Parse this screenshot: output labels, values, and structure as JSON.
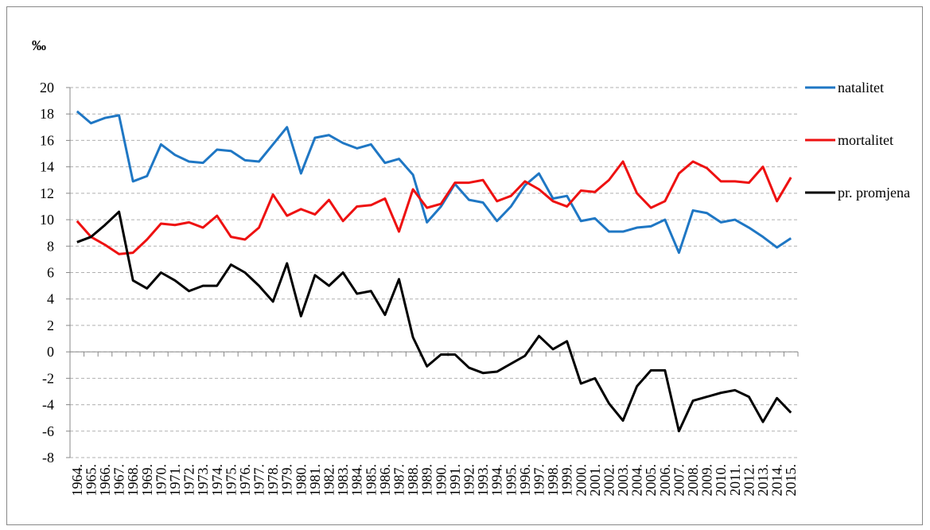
{
  "chart_data": {
    "type": "line",
    "y_label": "‰",
    "categories": [
      "1964.",
      "1965.",
      "1966.",
      "1967.",
      "1968.",
      "1969.",
      "1970.",
      "1971.",
      "1972.",
      "1973.",
      "1974.",
      "1975.",
      "1976.",
      "1977.",
      "1978.",
      "1979.",
      "1980.",
      "1981.",
      "1982.",
      "1983.",
      "1984.",
      "1985.",
      "1986.",
      "1987.",
      "1988.",
      "1989.",
      "1990.",
      "1991.",
      "1992.",
      "1993.",
      "1994.",
      "1995.",
      "1996.",
      "1997.",
      "1998.",
      "1999.",
      "2000.",
      "2001.",
      "2002.",
      "2003.",
      "2004.",
      "2005.",
      "2006.",
      "2007.",
      "2008.",
      "2009.",
      "2010.",
      "2011.",
      "2012.",
      "2013.",
      "2014.",
      "2015."
    ],
    "series": [
      {
        "name": "natalitet",
        "color": "#1f77c4",
        "values": [
          18.2,
          17.3,
          17.7,
          17.9,
          12.9,
          13.3,
          15.7,
          14.9,
          14.4,
          14.3,
          15.3,
          15.2,
          14.5,
          14.4,
          15.7,
          17.0,
          13.5,
          16.2,
          16.4,
          15.8,
          15.4,
          15.7,
          14.3,
          14.6,
          13.4,
          9.8,
          11.0,
          12.7,
          11.5,
          11.3,
          9.9,
          11.0,
          12.6,
          13.5,
          11.6,
          11.8,
          9.9,
          10.1,
          9.1,
          9.1,
          9.4,
          9.5,
          10.0,
          7.5,
          10.7,
          10.5,
          9.8,
          10.0,
          9.4,
          8.7,
          7.9,
          8.6
        ]
      },
      {
        "name": "mortalitet",
        "color": "#ee1111",
        "values": [
          9.9,
          8.7,
          8.1,
          7.4,
          7.5,
          8.5,
          9.7,
          9.6,
          9.8,
          9.4,
          10.3,
          8.7,
          8.5,
          9.4,
          11.9,
          10.3,
          10.8,
          10.4,
          11.5,
          9.9,
          11.0,
          11.1,
          11.6,
          9.1,
          12.3,
          10.9,
          11.2,
          12.8,
          12.8,
          13.0,
          11.4,
          11.8,
          12.9,
          12.3,
          11.4,
          11.0,
          12.2,
          12.1,
          13.0,
          14.4,
          12.0,
          10.9,
          11.4,
          13.5,
          14.4,
          13.9,
          12.9,
          12.9,
          12.8,
          14.0,
          11.4,
          13.2
        ]
      },
      {
        "name": "pr. promjena",
        "color": "#000000",
        "values": [
          8.3,
          8.7,
          9.6,
          10.6,
          5.4,
          4.8,
          6.0,
          5.4,
          4.6,
          5.0,
          5.0,
          6.6,
          6.0,
          5.0,
          3.8,
          6.7,
          2.7,
          5.8,
          5.0,
          6.0,
          4.4,
          4.6,
          2.8,
          5.5,
          1.1,
          -1.1,
          -0.2,
          -0.2,
          -1.2,
          -1.6,
          -1.5,
          -0.9,
          -0.3,
          1.2,
          0.2,
          0.8,
          -2.4,
          -2.0,
          -3.9,
          -5.2,
          -2.6,
          -1.4,
          -1.4,
          -6.0,
          -3.7,
          -3.4,
          -3.1,
          -2.9,
          -3.4,
          -5.3,
          -3.5,
          -4.6
        ]
      }
    ],
    "ylim": [
      -8,
      20
    ],
    "yticks": [
      -8,
      -6,
      -4,
      -2,
      0,
      2,
      4,
      6,
      8,
      10,
      12,
      14,
      16,
      18,
      20
    ],
    "grid": true,
    "legend": "right"
  }
}
